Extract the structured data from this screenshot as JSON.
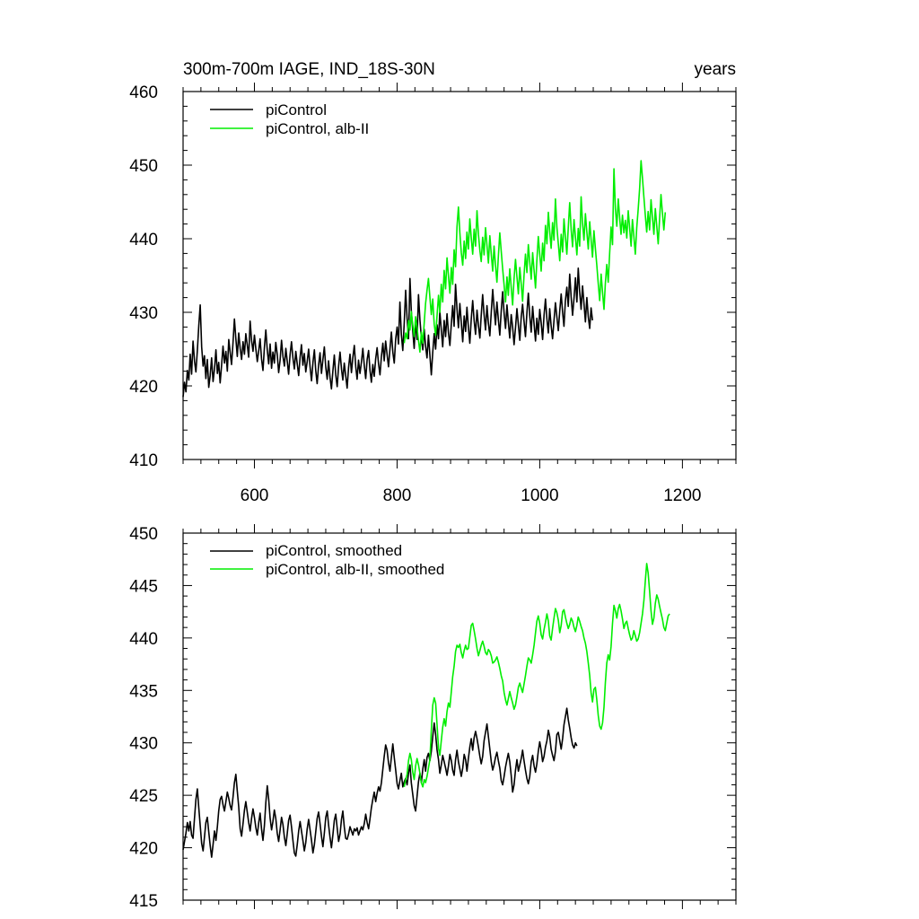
{
  "chart_data": [
    {
      "type": "line",
      "title_left": "300m-700m IAGE, IND_18S-30N",
      "title_right": "years",
      "xlim": [
        500,
        1275
      ],
      "ylim": [
        410,
        460
      ],
      "x_ticks": [
        600,
        800,
        1000,
        1200
      ],
      "x_tick_labels": [
        "600",
        "800",
        "1000",
        "1200"
      ],
      "y_ticks": [
        410,
        420,
        430,
        440,
        450,
        460
      ],
      "y_tick_labels": [
        "410",
        "420",
        "430",
        "440",
        "450",
        "460"
      ],
      "legend_position": "top-left",
      "series": [
        {
          "name": "piControl",
          "color": "#000000",
          "x_start": 500,
          "x_step": 2,
          "values": [
            418.5,
            420.5,
            419.2,
            422.1,
            420.8,
            424.3,
            421.6,
            426.1,
            423.4,
            421.9,
            424.8,
            428.2,
            431.0,
            425.3,
            422.7,
            424.1,
            421.0,
            423.6,
            419.8,
            421.4,
            423.8,
            420.6,
            422.3,
            424.9,
            421.7,
            423.2,
            420.4,
            422.8,
            425.4,
            423.1,
            424.7,
            422.0,
            426.3,
            424.5,
            422.9,
            425.8,
            429.1,
            426.4,
            424.0,
            427.2,
            425.1,
            423.6,
            426.0,
            424.3,
            427.1,
            425.6,
            423.9,
            428.8,
            426.2,
            424.7,
            426.9,
            425.0,
            423.3,
            424.8,
            426.4,
            423.7,
            422.1,
            425.2,
            427.6,
            424.9,
            423.0,
            425.7,
            422.4,
            424.6,
            423.1,
            425.9,
            424.3,
            421.8,
            423.5,
            426.2,
            424.0,
            422.7,
            425.1,
            423.4,
            421.6,
            424.2,
            426.0,
            423.8,
            422.3,
            424.7,
            423.0,
            421.4,
            423.9,
            425.6,
            422.8,
            424.4,
            421.9,
            423.3,
            425.0,
            422.6,
            420.7,
            423.2,
            424.9,
            422.1,
            420.3,
            422.8,
            424.5,
            421.7,
            423.6,
            425.3,
            422.5,
            420.9,
            423.4,
            421.2,
            419.6,
            422.0,
            424.2,
            421.5,
            419.9,
            422.7,
            424.6,
            422.3,
            420.8,
            423.1,
            421.4,
            419.7,
            422.5,
            424.3,
            421.8,
            423.9,
            425.5,
            422.6,
            420.9,
            423.5,
            421.7,
            423.2,
            425.1,
            422.8,
            421.0,
            423.6,
            424.8,
            422.2,
            420.5,
            422.9,
            421.3,
            423.7,
            425.2,
            423.0,
            421.5,
            424.0,
            425.8,
            423.4,
            426.1,
            424.3,
            422.6,
            425.0,
            427.3,
            424.6,
            423.1,
            426.4,
            428.0,
            425.7,
            431.4,
            427.0,
            424.8,
            428.5,
            433.0,
            429.2,
            426.4,
            434.6,
            430.2,
            427.5,
            425.1,
            428.8,
            426.3,
            432.4,
            429.0,
            426.6,
            424.9,
            427.7,
            425.4,
            423.8,
            426.9,
            424.2,
            421.5,
            424.6,
            427.1,
            425.0,
            428.3,
            426.4,
            430.1,
            427.6,
            425.3,
            428.9,
            426.7,
            429.8,
            427.2,
            425.5,
            428.4,
            430.9,
            428.1,
            433.8,
            430.5,
            427.9,
            431.2,
            428.6,
            426.0,
            429.5,
            427.4,
            430.7,
            428.0,
            425.8,
            429.1,
            431.6,
            428.9,
            427.0,
            430.3,
            428.2,
            426.5,
            429.6,
            432.4,
            429.7,
            427.6,
            430.9,
            428.5,
            426.8,
            430.0,
            433.1,
            430.6,
            428.3,
            431.4,
            429.0,
            426.9,
            430.2,
            432.8,
            429.9,
            427.8,
            431.0,
            428.7,
            426.5,
            429.7,
            428.0,
            425.6,
            427.9,
            430.5,
            428.3,
            426.2,
            429.4,
            431.1,
            428.8,
            426.7,
            429.9,
            432.6,
            429.5,
            427.3,
            430.8,
            428.4,
            426.1,
            429.2,
            427.0,
            430.4,
            428.6,
            426.3,
            429.6,
            431.8,
            429.1,
            427.2,
            430.5,
            428.2,
            426.4,
            428.9,
            431.3,
            429.4,
            427.5,
            430.2,
            432.5,
            430.0,
            428.1,
            431.6,
            433.4,
            430.8,
            435.2,
            432.1,
            429.6,
            431.9,
            434.7,
            431.4,
            436.0,
            432.8,
            430.4,
            433.6,
            431.2,
            428.7,
            432.0,
            429.4,
            427.8,
            430.6,
            428.9
          ]
        },
        {
          "name": "piControl, alb-II",
          "color": "#00ee00",
          "x_start": 810,
          "x_step": 2,
          "values": [
            425.8,
            427.2,
            426.4,
            428.9,
            427.6,
            430.1,
            428.3,
            426.7,
            429.4,
            427.9,
            426.2,
            424.6,
            427.3,
            425.8,
            428.6,
            431.2,
            433.0,
            434.6,
            432.1,
            429.7,
            431.8,
            428.4,
            426.9,
            429.6,
            432.3,
            430.0,
            433.8,
            431.4,
            435.7,
            433.2,
            437.4,
            434.9,
            432.6,
            436.1,
            433.8,
            438.5,
            436.2,
            441.6,
            444.3,
            440.8,
            438.1,
            436.4,
            439.7,
            437.3,
            440.9,
            438.6,
            442.7,
            440.1,
            437.9,
            441.3,
            439.0,
            443.8,
            440.6,
            438.4,
            436.9,
            440.2,
            437.8,
            441.5,
            439.1,
            436.7,
            440.4,
            437.9,
            435.6,
            439.0,
            436.4,
            434.1,
            437.6,
            440.8,
            438.3,
            435.9,
            433.7,
            431.4,
            434.8,
            432.3,
            435.9,
            433.4,
            431.0,
            434.6,
            437.2,
            434.8,
            432.5,
            436.1,
            433.8,
            431.5,
            435.0,
            437.9,
            435.4,
            439.2,
            436.8,
            434.5,
            438.1,
            435.7,
            433.3,
            437.0,
            440.3,
            437.9,
            435.6,
            439.4,
            437.0,
            441.8,
            439.3,
            443.6,
            441.0,
            438.7,
            442.2,
            439.8,
            445.4,
            441.6,
            439.3,
            437.0,
            440.6,
            438.2,
            442.7,
            440.3,
            437.9,
            441.5,
            444.9,
            441.3,
            438.9,
            442.6,
            440.2,
            437.8,
            441.4,
            439.0,
            445.7,
            442.1,
            439.8,
            443.4,
            440.9,
            438.6,
            442.3,
            439.9,
            437.5,
            441.1,
            438.7,
            436.4,
            433.9,
            431.6,
            435.2,
            432.7,
            430.4,
            433.9,
            436.5,
            434.1,
            438.0,
            441.6,
            439.2,
            449.5,
            444.1,
            441.7,
            445.4,
            442.9,
            440.6,
            443.2,
            440.8,
            442.5,
            440.1,
            443.8,
            441.4,
            439.0,
            442.6,
            440.3,
            437.9,
            441.5,
            444.0,
            446.8,
            450.6,
            448.2,
            445.6,
            443.1,
            440.9,
            443.7,
            441.2,
            445.3,
            442.9,
            440.6,
            444.1,
            441.7,
            439.3,
            442.8,
            446.0,
            443.5,
            441.2,
            443.6
          ]
        }
      ]
    },
    {
      "type": "line",
      "xlim": [
        500,
        1275
      ],
      "ylim": [
        415,
        450
      ],
      "x_ticks": [
        600,
        800,
        1000,
        1200
      ],
      "y_ticks": [
        415,
        420,
        425,
        430,
        435,
        440,
        445,
        450
      ],
      "y_tick_labels": [
        "415",
        "420",
        "425",
        "430",
        "435",
        "440",
        "445",
        "450"
      ],
      "legend_position": "top-left",
      "series": [
        {
          "name": "piControl, smoothed",
          "color": "#000000",
          "x_start": 500,
          "x_step": 2,
          "values": [
            419.8,
            420.6,
            421.4,
            422.4,
            421.6,
            422.5,
            421.2,
            420.9,
            422.8,
            424.6,
            425.6,
            423.8,
            422.1,
            420.4,
            419.7,
            421.0,
            422.4,
            422.9,
            421.5,
            420.2,
            419.1,
            420.3,
            421.6,
            420.7,
            422.0,
            423.5,
            424.6,
            424.9,
            424.1,
            423.5,
            424.4,
            425.3,
            424.7,
            424.0,
            423.6,
            424.8,
            426.2,
            427.0,
            425.4,
            423.9,
            421.8,
            421.1,
            422.3,
            423.6,
            424.4,
            423.4,
            422.4,
            421.6,
            422.8,
            423.7,
            422.9,
            421.9,
            421.2,
            422.4,
            423.3,
            421.8,
            420.7,
            422.1,
            424.3,
            425.9,
            424.6,
            422.8,
            421.7,
            422.5,
            423.6,
            422.8,
            421.4,
            420.6,
            421.7,
            422.9,
            422.2,
            421.0,
            420.2,
            421.3,
            422.6,
            423.1,
            422.0,
            420.7,
            419.5,
            419.2,
            420.3,
            421.6,
            422.5,
            421.6,
            420.7,
            419.7,
            420.5,
            421.8,
            422.7,
            421.7,
            420.7,
            419.5,
            420.3,
            421.5,
            422.8,
            423.4,
            422.3,
            421.1,
            420.1,
            421.4,
            422.9,
            423.5,
            422.2,
            421.0,
            420.0,
            421.2,
            422.6,
            423.2,
            421.9,
            420.6,
            421.3,
            422.7,
            423.5,
            422.0,
            420.9,
            420.8,
            421.3,
            422.0,
            421.6,
            421.2,
            421.8,
            421.6,
            421.9,
            421.2,
            421.6,
            422.0,
            421.7,
            422.3,
            423.2,
            422.4,
            421.8,
            422.7,
            423.8,
            424.6,
            425.3,
            424.4,
            425.2,
            425.8,
            425.4,
            426.2,
            427.5,
            428.7,
            429.8,
            429.3,
            428.1,
            427.3,
            428.6,
            429.9,
            428.6,
            427.4,
            426.1,
            425.6,
            426.4,
            427.1,
            425.8,
            426.3,
            426.6,
            426.0,
            427.1,
            427.9,
            426.2,
            425.1,
            424.0,
            423.5,
            424.9,
            426.3,
            427.1,
            426.2,
            427.5,
            428.4,
            427.3,
            428.6,
            429.0,
            428.3,
            429.2,
            430.6,
            431.9,
            430.8,
            429.3,
            428.4,
            427.1,
            427.9,
            428.8,
            428.2,
            427.6,
            426.9,
            427.8,
            428.9,
            428.3,
            427.4,
            426.9,
            428.4,
            429.3,
            428.2,
            427.5,
            426.8,
            427.6,
            428.9,
            428.4,
            427.3,
            428.5,
            429.6,
            430.4,
            429.3,
            430.5,
            431.1,
            430.4,
            429.6,
            428.7,
            428.0,
            428.7,
            430.2,
            431.0,
            431.8,
            430.6,
            429.4,
            428.2,
            427.4,
            427.9,
            428.6,
            429.1,
            428.3,
            427.6,
            426.4,
            426.0,
            426.8,
            427.7,
            428.4,
            429.0,
            428.2,
            426.9,
            425.3,
            426.0,
            427.4,
            428.4,
            427.3,
            427.9,
            428.5,
            429.3,
            428.3,
            427.4,
            426.6,
            426.1,
            426.8,
            428.2,
            428.8,
            427.8,
            427.2,
            428.0,
            429.2,
            430.1,
            429.3,
            428.2,
            428.7,
            429.6,
            430.2,
            431.2,
            430.6,
            429.4,
            428.8,
            428.3,
            429.2,
            430.8,
            431.0,
            430.2,
            429.4,
            430.4,
            431.7,
            432.5,
            433.3,
            432.2,
            431.4,
            430.5,
            429.8,
            429.5,
            430.0,
            429.7
          ]
        },
        {
          "name": "piControl, alb-II, smoothed",
          "color": "#00ee00",
          "x_start": 810,
          "x_step": 2,
          "values": [
            425.8,
            426.5,
            427.0,
            428.3,
            429.0,
            428.4,
            427.2,
            426.5,
            427.8,
            428.5,
            427.9,
            427.1,
            426.2,
            425.8,
            426.5,
            426.2,
            426.8,
            427.6,
            428.4,
            431.2,
            433.6,
            434.3,
            433.8,
            431.7,
            429.5,
            428.8,
            430.2,
            431.5,
            432.3,
            431.6,
            433.0,
            433.8,
            433.4,
            434.9,
            436.3,
            437.3,
            438.7,
            439.3,
            439.1,
            439.4,
            438.6,
            438.1,
            438.8,
            439.3,
            438.9,
            439.0,
            440.1,
            441.2,
            441.4,
            440.7,
            439.9,
            439.0,
            438.3,
            438.8,
            439.3,
            439.7,
            439.2,
            438.6,
            438.4,
            438.9,
            438.7,
            438.3,
            437.6,
            437.7,
            437.9,
            438.2,
            437.7,
            437.1,
            436.4,
            435.9,
            434.8,
            434.1,
            433.6,
            434.2,
            434.9,
            434.3,
            433.8,
            433.2,
            433.6,
            434.4,
            435.3,
            435.7,
            435.2,
            434.8,
            435.6,
            436.4,
            437.3,
            438.1,
            437.9,
            437.6,
            438.4,
            439.3,
            440.5,
            441.6,
            442.1,
            441.4,
            440.3,
            439.9,
            440.8,
            441.5,
            442.3,
            441.6,
            440.2,
            439.8,
            440.9,
            441.9,
            442.8,
            442.4,
            441.7,
            440.5,
            441.2,
            442.5,
            442.7,
            442.0,
            441.4,
            440.9,
            441.3,
            441.9,
            441.6,
            441.0,
            440.6,
            441.2,
            442.0,
            441.6,
            441.1,
            440.7,
            440.0,
            439.5,
            438.7,
            437.6,
            436.4,
            434.8,
            433.9,
            435.1,
            435.3,
            434.1,
            432.6,
            431.6,
            431.3,
            431.9,
            433.4,
            435.7,
            437.6,
            438.4,
            437.9,
            439.2,
            441.4,
            443.1,
            442.6,
            441.9,
            442.8,
            443.2,
            442.6,
            441.8,
            440.9,
            441.4,
            441.6,
            440.9,
            440.3,
            439.8,
            440.0,
            440.7,
            440.2,
            439.7,
            439.9,
            440.5,
            441.4,
            442.3,
            443.6,
            445.5,
            447.1,
            446.2,
            444.5,
            442.6,
            441.3,
            441.9,
            443.3,
            444.1,
            443.7,
            443.0,
            442.4,
            441.8,
            441.0,
            440.7,
            441.4,
            442.1,
            442.3
          ]
        }
      ]
    }
  ]
}
